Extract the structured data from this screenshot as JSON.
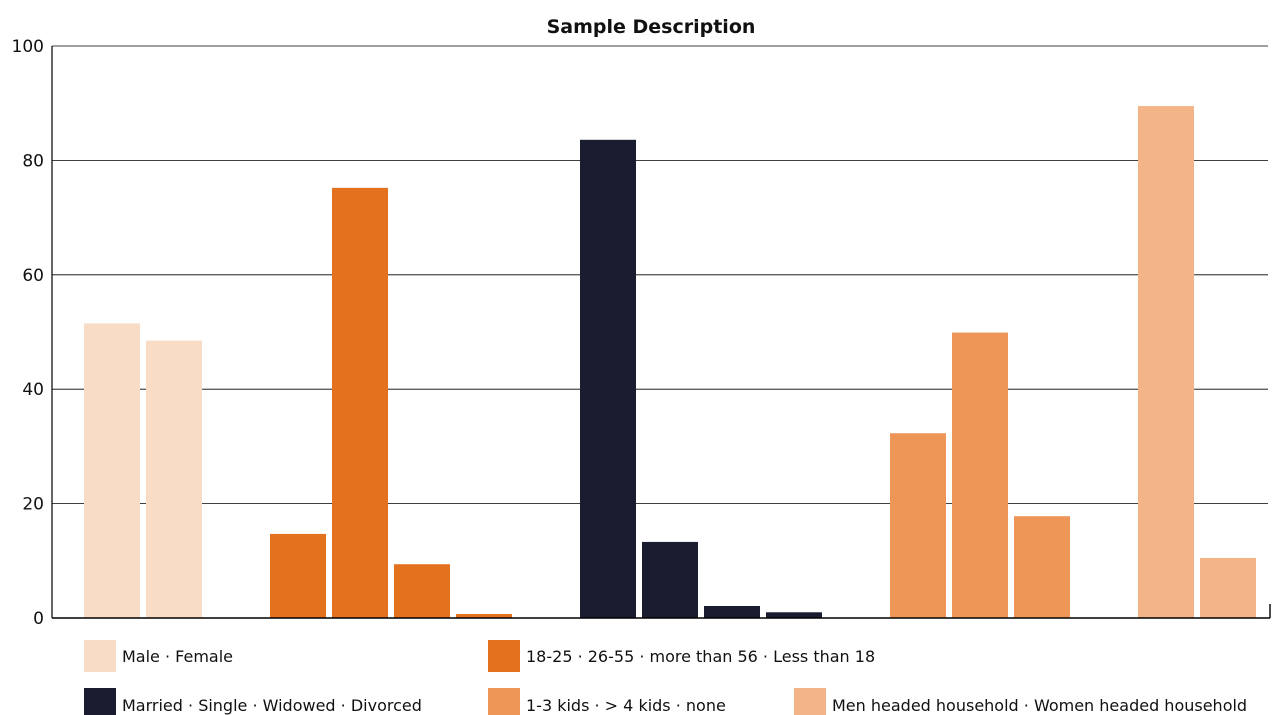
{
  "chart_data": {
    "type": "bar",
    "title": "Sample Description",
    "xlabel": "",
    "ylabel": "",
    "ylim": [
      0,
      100
    ],
    "yticks": [
      0,
      20,
      40,
      60,
      80,
      100
    ],
    "grid": true,
    "legend_position": "bottom",
    "groups": [
      {
        "legend": "Male · Female",
        "color": "#F8DCC6",
        "categories": [
          "Male",
          "Female"
        ],
        "values": [
          51.5,
          48.5
        ]
      },
      {
        "legend": "18-25 · 26-55 · more than 56 · Less than 18",
        "color": "#E3711E",
        "categories": [
          "18-25",
          "26-55",
          "more than 56",
          "Less than 18"
        ],
        "values": [
          14.7,
          75.2,
          9.4,
          0.7
        ]
      },
      {
        "legend": "Married · Single · Widowed · Divorced",
        "color": "#1A1C30",
        "categories": [
          "Married",
          "Single",
          "Widowed",
          "Divorced"
        ],
        "values": [
          83.6,
          13.3,
          2.1,
          1.0
        ]
      },
      {
        "legend": "1-3 kids · > 4 kids · none",
        "color": "#EE9657",
        "categories": [
          "1-3 kids",
          "> 4 kids",
          "none"
        ],
        "values": [
          32.3,
          49.9,
          17.8
        ]
      },
      {
        "legend": "Men headed household · Women headed household",
        "color": "#F3B588",
        "categories": [
          "Men headed household",
          "Women headed household"
        ],
        "values": [
          89.5,
          10.5
        ]
      }
    ]
  }
}
